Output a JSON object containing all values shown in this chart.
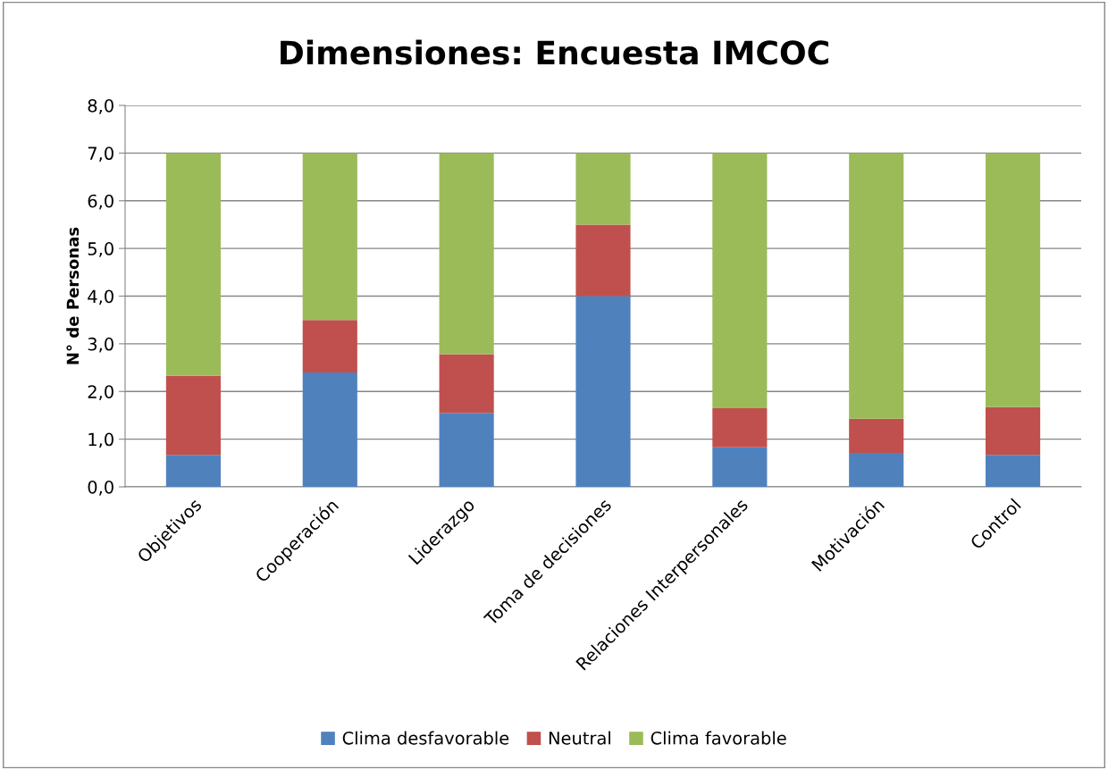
{
  "chart_data": {
    "type": "bar",
    "title": "Dimensiones: Encuesta IMCOC",
    "ylabel": "N° de Personas",
    "categories": [
      "Objetivos",
      "Cooperación",
      "Liderazgo",
      "Toma de decisiones",
      "Relaciones Interpersonales",
      "Motivación",
      "Control"
    ],
    "stacked": true,
    "series": [
      {
        "name": "Clima desfavorable",
        "color": "#4f81bd",
        "values": [
          0.67,
          2.4,
          1.55,
          4.0,
          0.83,
          0.71,
          0.67
        ]
      },
      {
        "name": "Neutral",
        "color": "#c0504d",
        "values": [
          1.66,
          1.1,
          1.23,
          1.5,
          0.82,
          0.72,
          1.0
        ]
      },
      {
        "name": "Clima favorable",
        "color": "#9bbb59",
        "values": [
          4.67,
          3.5,
          4.22,
          1.5,
          5.35,
          5.57,
          5.33
        ]
      }
    ],
    "ylim": [
      0,
      8
    ],
    "yticks": [
      {
        "value": 0,
        "label": "0,0"
      },
      {
        "value": 1,
        "label": "1,0"
      },
      {
        "value": 2,
        "label": "2,0"
      },
      {
        "value": 3,
        "label": "3,0"
      },
      {
        "value": 4,
        "label": "4,0"
      },
      {
        "value": 5,
        "label": "5,0"
      },
      {
        "value": 6,
        "label": "6,0"
      },
      {
        "value": 7,
        "label": "7,0"
      },
      {
        "value": 8,
        "label": "8,0"
      }
    ],
    "grid": "y",
    "legend": "bottom"
  }
}
